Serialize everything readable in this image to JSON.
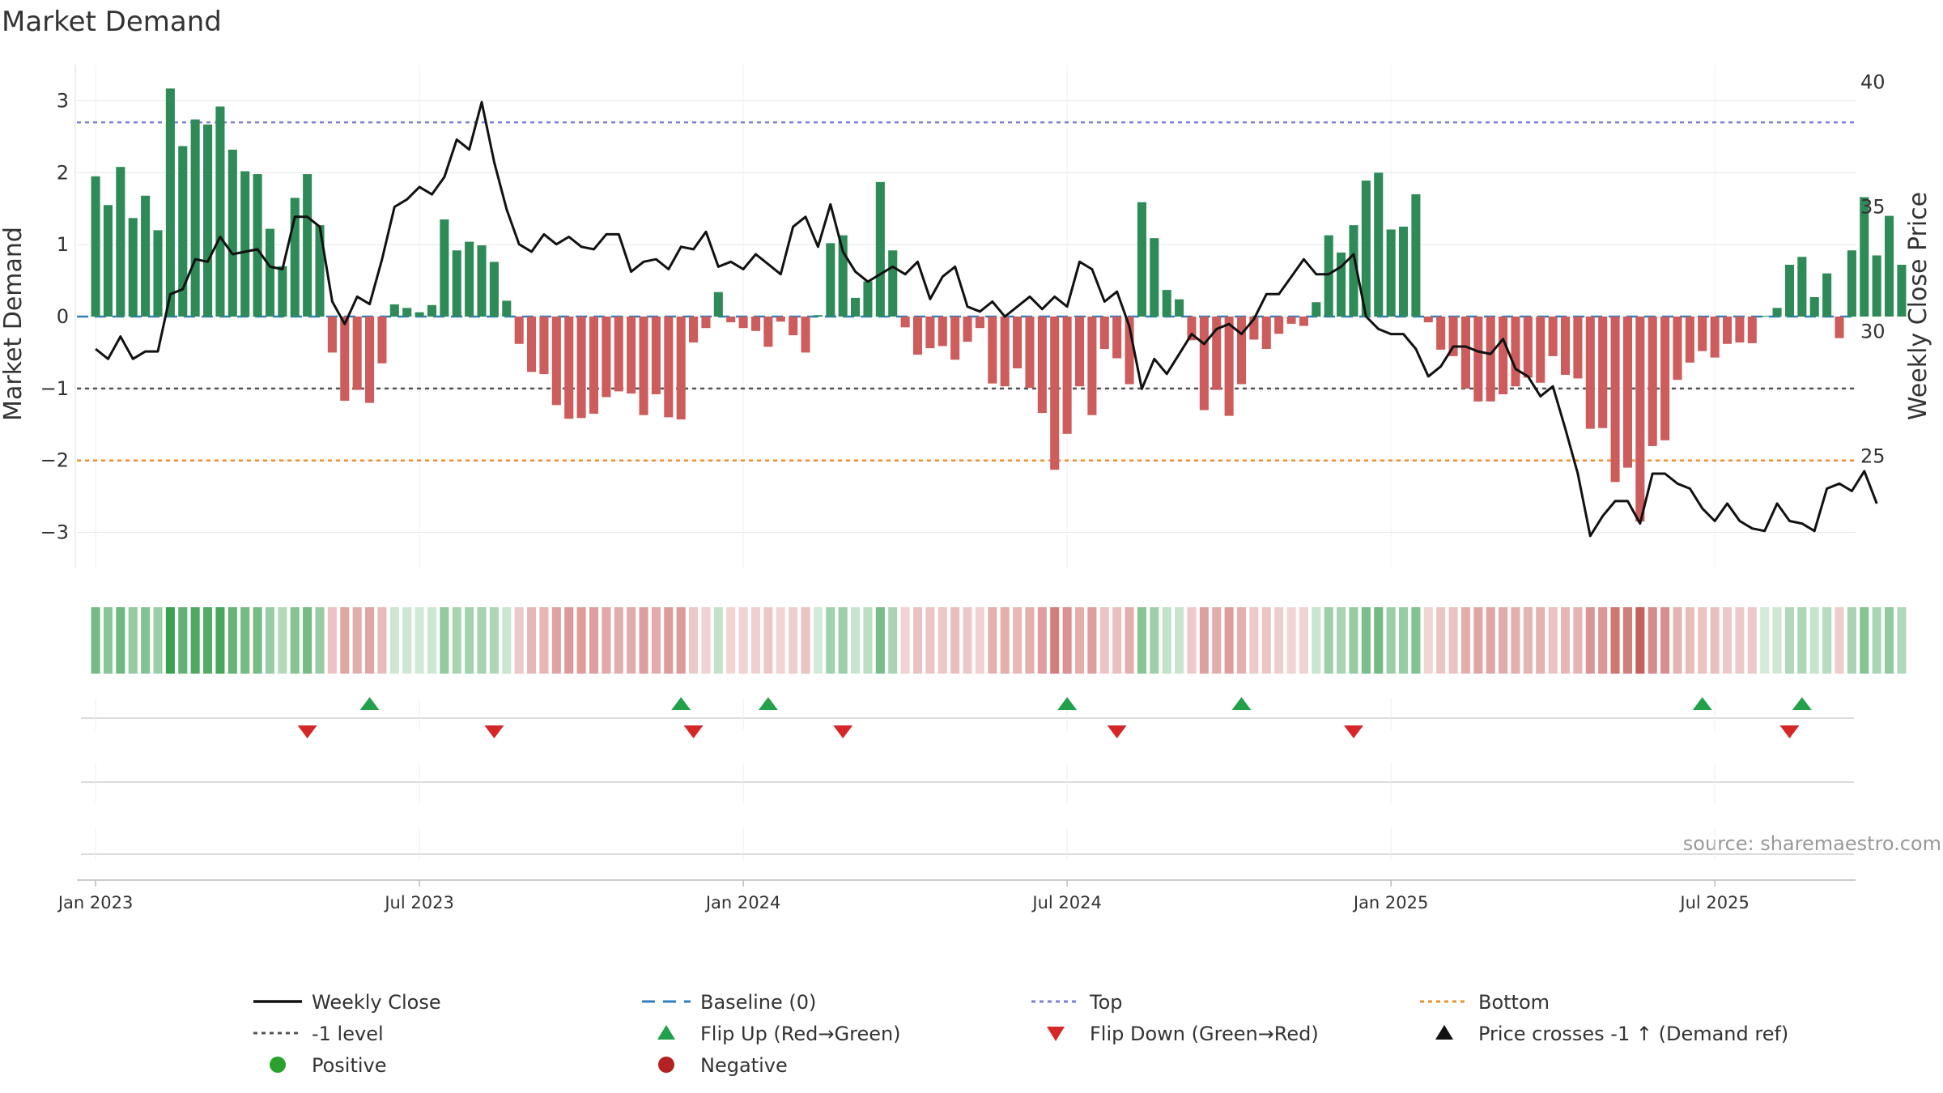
{
  "chart_data": {
    "type": "bar",
    "title": "Market Demand",
    "ylabel_left": "Market Demand",
    "ylabel_right": "Weekly Close Price",
    "source": "source: sharemaestro.com",
    "ylim_left": [
      -3.5,
      3.5
    ],
    "ylim_right": [
      20.5,
      40.7
    ],
    "yticks_left": [
      {
        "value": 3,
        "label": "3"
      },
      {
        "value": 2,
        "label": "2"
      },
      {
        "value": 1,
        "label": "1"
      },
      {
        "value": 0,
        "label": "0"
      },
      {
        "value": -1,
        "label": "−1"
      },
      {
        "value": -2,
        "label": "−2"
      },
      {
        "value": -3,
        "label": "−3"
      }
    ],
    "yticks_right": [
      {
        "value": 40,
        "label": "40"
      },
      {
        "value": 35,
        "label": "35"
      },
      {
        "value": 30,
        "label": "30"
      },
      {
        "value": 25,
        "label": "25"
      }
    ],
    "x_start_week": -1.5,
    "x_end_week": 141.3,
    "xticks": [
      {
        "week": 0,
        "label": "Jan 2023"
      },
      {
        "week": 26,
        "label": "Jul 2023"
      },
      {
        "week": 52,
        "label": "Jan 2024"
      },
      {
        "week": 78,
        "label": "Jul 2024"
      },
      {
        "week": 104,
        "label": "Jan 2025"
      },
      {
        "week": 130,
        "label": "Jul 2025"
      }
    ],
    "reference_lines": [
      {
        "name": "Top",
        "value": 2.7,
        "color": "#7b7fd4",
        "style": "dotted"
      },
      {
        "name": "-1 level",
        "value": -1,
        "color": "#555555",
        "style": "dotted"
      },
      {
        "name": "Bottom",
        "value": -2,
        "color": "#e8912d",
        "style": "dotted"
      },
      {
        "name": "Baseline (0)",
        "value": 0,
        "color": "#2f7fc1",
        "style": "dashed"
      }
    ],
    "demand": [
      1.95,
      1.55,
      2.08,
      1.37,
      1.68,
      1.2,
      3.17,
      2.37,
      2.74,
      2.67,
      2.92,
      2.32,
      2.02,
      1.98,
      1.22,
      0.7,
      1.65,
      1.98,
      1.27,
      -0.5,
      -1.17,
      -1.02,
      -1.2,
      -0.65,
      0.17,
      0.12,
      0.06,
      0.16,
      1.35,
      0.92,
      1.04,
      0.99,
      0.76,
      0.22,
      -0.38,
      -0.77,
      -0.8,
      -1.23,
      -1.42,
      -1.41,
      -1.35,
      -1.12,
      -1.04,
      -1.07,
      -1.37,
      -1.08,
      -1.4,
      -1.43,
      -0.36,
      -0.16,
      0.34,
      -0.08,
      -0.16,
      -0.2,
      -0.42,
      -0.07,
      -0.26,
      -0.5,
      0.02,
      1.02,
      1.13,
      0.26,
      0.49,
      1.87,
      0.92,
      -0.15,
      -0.53,
      -0.44,
      -0.41,
      -0.6,
      -0.35,
      -0.16,
      -0.93,
      -0.97,
      -0.72,
      -0.99,
      -1.34,
      -2.13,
      -1.63,
      -0.97,
      -1.37,
      -0.45,
      -0.58,
      -0.94,
      1.59,
      1.09,
      0.37,
      0.24,
      -0.33,
      -1.3,
      -1.02,
      -1.38,
      -0.94,
      -0.32,
      -0.45,
      -0.24,
      -0.1,
      -0.13,
      0.2,
      1.13,
      0.89,
      1.27,
      1.89,
      2.0,
      1.21,
      1.25,
      1.7,
      -0.08,
      -0.46,
      -0.55,
      -1.0,
      -1.18,
      -1.18,
      -1.08,
      -0.97,
      -0.85,
      -0.92,
      -0.55,
      -0.81,
      -0.86,
      -1.56,
      -1.55,
      -2.3,
      -2.1,
      -2.85,
      -1.8,
      -1.72,
      -0.88,
      -0.64,
      -0.48,
      -0.57,
      -0.38,
      -0.36,
      -0.37,
      0.01,
      0.12,
      0.72,
      0.83,
      0.27,
      0.6,
      -0.3,
      0.92,
      1.66,
      0.85,
      1.4,
      0.72
    ],
    "price": [
      29.3,
      28.9,
      29.8,
      28.9,
      29.2,
      29.2,
      31.5,
      31.7,
      32.9,
      32.8,
      33.8,
      33.1,
      33.2,
      33.3,
      32.6,
      32.5,
      34.6,
      34.6,
      34.2,
      31.2,
      30.3,
      31.4,
      31.1,
      32.9,
      35.0,
      35.3,
      35.8,
      35.5,
      36.2,
      37.7,
      37.3,
      39.2,
      36.8,
      34.9,
      33.5,
      33.2,
      33.9,
      33.5,
      33.8,
      33.4,
      33.3,
      33.9,
      33.9,
      32.4,
      32.8,
      32.9,
      32.5,
      33.4,
      33.3,
      34.0,
      32.6,
      32.8,
      32.5,
      33.1,
      32.7,
      32.3,
      34.2,
      34.6,
      33.4,
      35.1,
      33.2,
      32.4,
      32.0,
      32.3,
      32.6,
      32.3,
      32.8,
      31.3,
      32.2,
      32.6,
      31.0,
      30.8,
      31.2,
      30.6,
      31.0,
      31.4,
      30.9,
      31.4,
      31.0,
      32.8,
      32.5,
      31.2,
      31.6,
      30.2,
      27.7,
      28.9,
      28.3,
      29.1,
      29.9,
      29.5,
      30.1,
      30.3,
      29.9,
      30.5,
      31.5,
      31.5,
      32.2,
      32.9,
      32.3,
      32.3,
      32.6,
      33.1,
      30.6,
      30.1,
      29.9,
      29.9,
      29.3,
      28.2,
      28.6,
      29.4,
      29.4,
      29.2,
      29.1,
      29.7,
      28.5,
      28.2,
      27.4,
      27.8,
      26.1,
      24.3,
      21.8,
      22.6,
      23.2,
      23.2,
      22.3,
      24.3,
      24.3,
      23.9,
      23.7,
      22.9,
      22.4,
      23.1,
      22.4,
      22.1,
      22.0,
      23.1,
      22.4,
      22.3,
      22.0,
      23.7,
      23.9,
      23.6,
      24.4,
      23.1
    ],
    "flip_up_weeks": [
      22,
      47,
      54,
      78,
      92,
      129,
      137
    ],
    "flip_down_weeks": [
      17,
      32,
      48,
      60,
      82,
      101,
      136
    ],
    "legend": [
      {
        "label": "Weekly Close",
        "marker": "line",
        "color": "#111111"
      },
      {
        "label": "Baseline (0)",
        "marker": "dashed",
        "color": "#2f7fc1"
      },
      {
        "label": "Top",
        "marker": "dotted",
        "color": "#7b7fd4"
      },
      {
        "label": "Bottom",
        "marker": "dotted",
        "color": "#e8912d"
      },
      {
        "label": "-1 level",
        "marker": "dotted",
        "color": "#555555"
      },
      {
        "label": "Flip Up (Red→Green)",
        "marker": "triangle-up",
        "color": "#22a04a"
      },
      {
        "label": "Flip Down (Green→Red)",
        "marker": "triangle-down",
        "color": "#d62728"
      },
      {
        "label": "Price crosses -1 ↑ (Demand ref)",
        "marker": "triangle-up",
        "color": "#111111"
      },
      {
        "label": "Positive",
        "marker": "circle",
        "color": "#2ca02c"
      },
      {
        "label": "Negative",
        "marker": "circle",
        "color": "#b22222"
      }
    ],
    "colors": {
      "positive_bar": "#2e8b57",
      "negative_bar": "#cd5c5c",
      "price_line": "#111111",
      "grid": "#e6e6e6",
      "strip_positive": "#3a9e50",
      "strip_negative": "#c0504d"
    }
  }
}
